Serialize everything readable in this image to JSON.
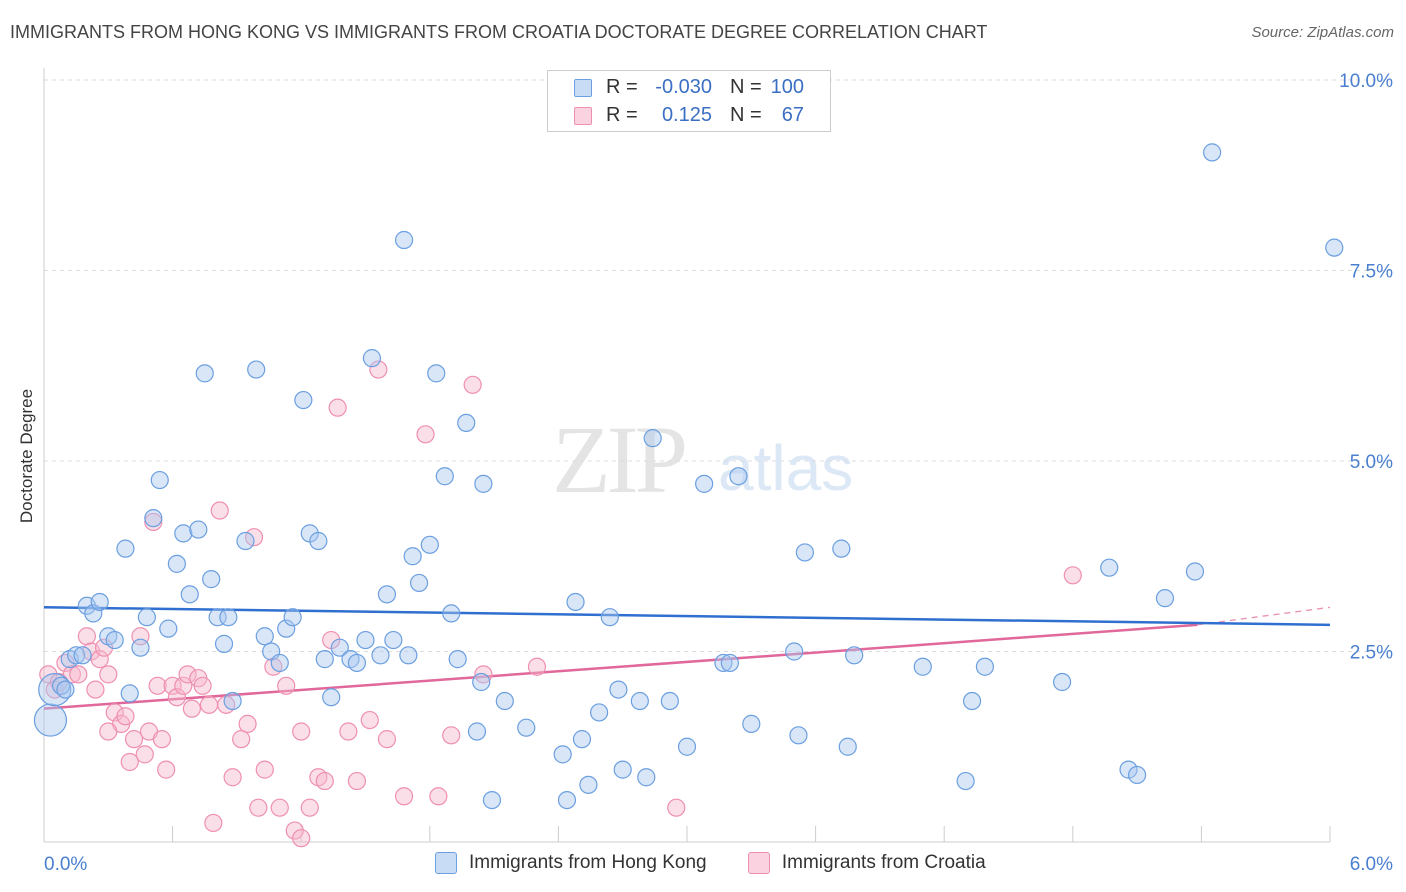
{
  "title": "IMMIGRANTS FROM HONG KONG VS IMMIGRANTS FROM CROATIA DOCTORATE DEGREE CORRELATION CHART",
  "source": "Source: ZipAtlas.com",
  "watermark": {
    "zip": "ZIP",
    "atlas": "atlas"
  },
  "legend": {
    "rows": [
      {
        "r_label": "R =",
        "r_value": "-0.030",
        "n_label": "N =",
        "n_value": "100",
        "color": "#a9c8f0"
      },
      {
        "r_label": "R =",
        "r_value": "0.125",
        "n_label": "N =",
        "n_value": "67",
        "color": "#f7b9cd"
      }
    ]
  },
  "bottom_legend": [
    {
      "label": "Immigrants from Hong Kong",
      "color": "#a9c8f0"
    },
    {
      "label": "Immigrants from Croatia",
      "color": "#f7b9cd"
    }
  ],
  "chart_data": {
    "type": "scatter",
    "xlabel": "",
    "ylabel": "Doctorate Degree",
    "xlim": [
      0.0,
      6.0
    ],
    "ylim": [
      0.0,
      10.0
    ],
    "x_tick_labels": [
      "0.0%",
      "6.0%"
    ],
    "y_tick_labels": [
      "2.5%",
      "5.0%",
      "7.5%",
      "10.0%"
    ],
    "y_ticks": [
      2.5,
      5.0,
      7.5,
      10.0
    ],
    "grid": true,
    "legend_position": "top-center",
    "colors": {
      "hong_kong": "#6b9fe0",
      "croatia": "#ef8fb0",
      "hk_line": "#2f6fcf",
      "cr_line": "#e0689a",
      "axis_text": "#4a7fd0"
    },
    "series": [
      {
        "name": "Immigrants from Hong Kong",
        "trend": {
          "x": [
            0.0,
            6.0
          ],
          "y": [
            3.08,
            2.85
          ]
        },
        "points": [
          {
            "x": 0.03,
            "y": 1.6,
            "big": true
          },
          {
            "x": 0.05,
            "y": 2.0,
            "big": true
          },
          {
            "x": 0.08,
            "y": 2.05
          },
          {
            "x": 0.1,
            "y": 2.0
          },
          {
            "x": 0.12,
            "y": 2.4
          },
          {
            "x": 0.15,
            "y": 2.45
          },
          {
            "x": 0.18,
            "y": 2.45
          },
          {
            "x": 0.2,
            "y": 3.1
          },
          {
            "x": 0.23,
            "y": 3.0
          },
          {
            "x": 0.26,
            "y": 3.15
          },
          {
            "x": 0.3,
            "y": 2.7
          },
          {
            "x": 0.33,
            "y": 2.65
          },
          {
            "x": 0.38,
            "y": 3.85
          },
          {
            "x": 0.4,
            "y": 1.95
          },
          {
            "x": 0.45,
            "y": 2.55
          },
          {
            "x": 0.48,
            "y": 2.95
          },
          {
            "x": 0.51,
            "y": 4.25
          },
          {
            "x": 0.54,
            "y": 4.75
          },
          {
            "x": 0.58,
            "y": 2.8
          },
          {
            "x": 0.62,
            "y": 3.65
          },
          {
            "x": 0.65,
            "y": 4.05
          },
          {
            "x": 0.68,
            "y": 3.25
          },
          {
            "x": 0.72,
            "y": 4.1
          },
          {
            "x": 0.75,
            "y": 6.15
          },
          {
            "x": 0.78,
            "y": 3.45
          },
          {
            "x": 0.81,
            "y": 2.95
          },
          {
            "x": 0.84,
            "y": 2.6
          },
          {
            "x": 0.86,
            "y": 2.95
          },
          {
            "x": 0.88,
            "y": 1.85
          },
          {
            "x": 0.94,
            "y": 3.95
          },
          {
            "x": 0.99,
            "y": 6.2
          },
          {
            "x": 1.03,
            "y": 2.7
          },
          {
            "x": 1.06,
            "y": 2.5
          },
          {
            "x": 1.1,
            "y": 2.35
          },
          {
            "x": 1.13,
            "y": 2.8
          },
          {
            "x": 1.16,
            "y": 2.95
          },
          {
            "x": 1.21,
            "y": 5.8
          },
          {
            "x": 1.24,
            "y": 4.05
          },
          {
            "x": 1.28,
            "y": 3.95
          },
          {
            "x": 1.31,
            "y": 2.4
          },
          {
            "x": 1.34,
            "y": 1.9
          },
          {
            "x": 1.38,
            "y": 2.55
          },
          {
            "x": 1.43,
            "y": 2.4
          },
          {
            "x": 1.46,
            "y": 2.35
          },
          {
            "x": 1.5,
            "y": 2.65
          },
          {
            "x": 1.53,
            "y": 6.35
          },
          {
            "x": 1.57,
            "y": 2.45
          },
          {
            "x": 1.6,
            "y": 3.25
          },
          {
            "x": 1.63,
            "y": 2.65
          },
          {
            "x": 1.68,
            "y": 7.9
          },
          {
            "x": 1.7,
            "y": 2.45
          },
          {
            "x": 1.72,
            "y": 3.75
          },
          {
            "x": 1.75,
            "y": 3.4
          },
          {
            "x": 1.8,
            "y": 3.9
          },
          {
            "x": 1.83,
            "y": 6.15
          },
          {
            "x": 1.87,
            "y": 4.8
          },
          {
            "x": 1.9,
            "y": 3.0
          },
          {
            "x": 1.93,
            "y": 2.4
          },
          {
            "x": 1.97,
            "y": 5.5
          },
          {
            "x": 2.02,
            "y": 1.45
          },
          {
            "x": 2.04,
            "y": 2.1
          },
          {
            "x": 2.05,
            "y": 4.7
          },
          {
            "x": 2.09,
            "y": 0.55
          },
          {
            "x": 2.15,
            "y": 1.85
          },
          {
            "x": 2.25,
            "y": 1.5
          },
          {
            "x": 2.42,
            "y": 1.15
          },
          {
            "x": 2.44,
            "y": 0.55
          },
          {
            "x": 2.48,
            "y": 3.15
          },
          {
            "x": 2.51,
            "y": 1.35
          },
          {
            "x": 2.54,
            "y": 0.75
          },
          {
            "x": 2.59,
            "y": 1.7
          },
          {
            "x": 2.64,
            "y": 2.95
          },
          {
            "x": 2.68,
            "y": 2.0
          },
          {
            "x": 2.7,
            "y": 0.95
          },
          {
            "x": 2.78,
            "y": 1.85
          },
          {
            "x": 2.81,
            "y": 0.85
          },
          {
            "x": 2.84,
            "y": 5.3
          },
          {
            "x": 2.92,
            "y": 1.85
          },
          {
            "x": 3.0,
            "y": 1.25
          },
          {
            "x": 3.08,
            "y": 4.7
          },
          {
            "x": 3.17,
            "y": 2.35
          },
          {
            "x": 3.2,
            "y": 2.35
          },
          {
            "x": 3.24,
            "y": 4.8
          },
          {
            "x": 3.3,
            "y": 1.55
          },
          {
            "x": 3.5,
            "y": 2.5
          },
          {
            "x": 3.52,
            "y": 1.4
          },
          {
            "x": 3.55,
            "y": 3.8
          },
          {
            "x": 3.72,
            "y": 3.85
          },
          {
            "x": 3.75,
            "y": 1.25
          },
          {
            "x": 3.78,
            "y": 2.45
          },
          {
            "x": 4.1,
            "y": 2.3
          },
          {
            "x": 4.3,
            "y": 0.8
          },
          {
            "x": 4.33,
            "y": 1.85
          },
          {
            "x": 4.39,
            "y": 2.3
          },
          {
            "x": 4.75,
            "y": 2.1
          },
          {
            "x": 4.97,
            "y": 3.6
          },
          {
            "x": 5.06,
            "y": 0.95
          },
          {
            "x": 5.1,
            "y": 0.88
          },
          {
            "x": 5.23,
            "y": 3.2
          },
          {
            "x": 5.37,
            "y": 3.55
          },
          {
            "x": 5.45,
            "y": 9.05
          },
          {
            "x": 6.02,
            "y": 7.8
          }
        ]
      },
      {
        "name": "Immigrants from Croatia",
        "trend": {
          "x": [
            0.0,
            5.38
          ],
          "y": [
            1.75,
            2.85
          ]
        },
        "trend_extension": {
          "x": [
            5.38,
            6.0
          ],
          "y": [
            2.85,
            3.08
          ]
        },
        "points": [
          {
            "x": 0.02,
            "y": 2.2
          },
          {
            "x": 0.05,
            "y": 2.0
          },
          {
            "x": 0.07,
            "y": 2.1
          },
          {
            "x": 0.1,
            "y": 2.35
          },
          {
            "x": 0.13,
            "y": 2.2
          },
          {
            "x": 0.16,
            "y": 2.2
          },
          {
            "x": 0.2,
            "y": 2.7
          },
          {
            "x": 0.22,
            "y": 2.5
          },
          {
            "x": 0.24,
            "y": 2.0
          },
          {
            "x": 0.26,
            "y": 2.4
          },
          {
            "x": 0.28,
            "y": 2.55
          },
          {
            "x": 0.3,
            "y": 2.2
          },
          {
            "x": 0.33,
            "y": 1.7
          },
          {
            "x": 0.36,
            "y": 1.55
          },
          {
            "x": 0.38,
            "y": 1.65
          },
          {
            "x": 0.4,
            "y": 1.05
          },
          {
            "x": 0.42,
            "y": 1.35
          },
          {
            "x": 0.45,
            "y": 2.7
          },
          {
            "x": 0.47,
            "y": 1.15
          },
          {
            "x": 0.49,
            "y": 1.45
          },
          {
            "x": 0.51,
            "y": 4.2
          },
          {
            "x": 0.53,
            "y": 2.05
          },
          {
            "x": 0.55,
            "y": 1.35
          },
          {
            "x": 0.57,
            "y": 0.95
          },
          {
            "x": 0.6,
            "y": 2.05
          },
          {
            "x": 0.62,
            "y": 1.9
          },
          {
            "x": 0.65,
            "y": 2.05
          },
          {
            "x": 0.67,
            "y": 2.2
          },
          {
            "x": 0.69,
            "y": 1.75
          },
          {
            "x": 0.72,
            "y": 2.15
          },
          {
            "x": 0.74,
            "y": 2.05
          },
          {
            "x": 0.77,
            "y": 1.8
          },
          {
            "x": 0.79,
            "y": 0.25
          },
          {
            "x": 0.82,
            "y": 4.35
          },
          {
            "x": 0.85,
            "y": 1.8
          },
          {
            "x": 0.88,
            "y": 0.85
          },
          {
            "x": 0.92,
            "y": 1.35
          },
          {
            "x": 0.95,
            "y": 1.55
          },
          {
            "x": 0.98,
            "y": 4.0
          },
          {
            "x": 1.0,
            "y": 0.45
          },
          {
            "x": 1.03,
            "y": 0.95
          },
          {
            "x": 1.07,
            "y": 2.3
          },
          {
            "x": 1.1,
            "y": 0.45
          },
          {
            "x": 1.13,
            "y": 2.05
          },
          {
            "x": 1.17,
            "y": 0.15
          },
          {
            "x": 1.2,
            "y": 1.45
          },
          {
            "x": 1.24,
            "y": 0.45
          },
          {
            "x": 1.28,
            "y": 0.85
          },
          {
            "x": 1.31,
            "y": 0.8
          },
          {
            "x": 1.34,
            "y": 2.65
          },
          {
            "x": 1.37,
            "y": 5.7
          },
          {
            "x": 1.42,
            "y": 1.45
          },
          {
            "x": 1.46,
            "y": 0.8
          },
          {
            "x": 1.52,
            "y": 1.6
          },
          {
            "x": 1.56,
            "y": 6.2
          },
          {
            "x": 1.6,
            "y": 1.35
          },
          {
            "x": 1.68,
            "y": 0.6
          },
          {
            "x": 1.78,
            "y": 5.35
          },
          {
            "x": 1.84,
            "y": 0.6
          },
          {
            "x": 1.9,
            "y": 1.4
          },
          {
            "x": 2.0,
            "y": 6.0
          },
          {
            "x": 2.05,
            "y": 2.2
          },
          {
            "x": 2.3,
            "y": 2.3
          },
          {
            "x": 2.95,
            "y": 0.45
          },
          {
            "x": 4.8,
            "y": 3.5
          },
          {
            "x": 1.2,
            "y": 0.05
          },
          {
            "x": 0.3,
            "y": 1.45
          }
        ]
      }
    ]
  }
}
